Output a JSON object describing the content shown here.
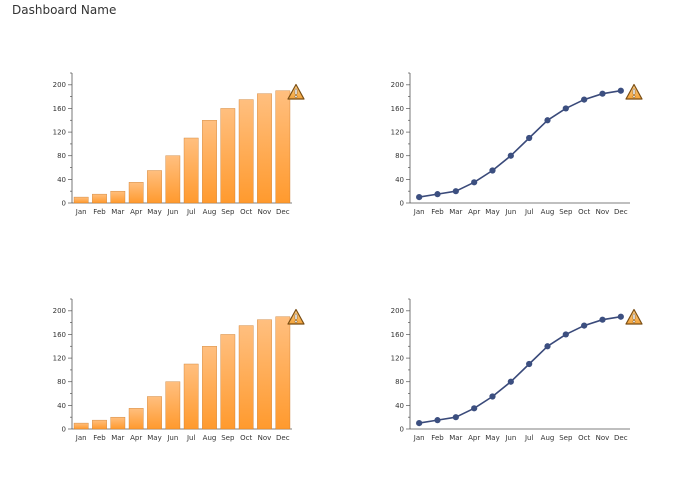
{
  "dashboard": {
    "title": "Dashboard Name"
  },
  "icons": {
    "warning": "warning-icon"
  },
  "colors": {
    "bar_top": "#ffbf7f",
    "bar_bottom": "#ff9a2e",
    "bar_stroke": "#c97a2b",
    "line": "#3a4a7a",
    "marker": "#3c4f80",
    "axis": "#555555",
    "warning_fill": "#f2a23a",
    "warning_stroke": "#7a4e14"
  },
  "chart_data": [
    {
      "type": "bar",
      "categories": [
        "Jan",
        "Feb",
        "Mar",
        "Apr",
        "May",
        "Jun",
        "Jul",
        "Aug",
        "Sep",
        "Oct",
        "Nov",
        "Dec"
      ],
      "values": [
        10,
        15,
        20,
        35,
        55,
        80,
        110,
        140,
        160,
        175,
        185,
        190
      ],
      "ylim": [
        0,
        220
      ],
      "yticks": [
        0,
        40,
        80,
        120,
        160,
        200
      ],
      "title": "",
      "xlabel": "",
      "ylabel": "",
      "grid": false
    },
    {
      "type": "line",
      "categories": [
        "Jan",
        "Feb",
        "Mar",
        "Apr",
        "May",
        "Jun",
        "Jul",
        "Aug",
        "Sep",
        "Oct",
        "Nov",
        "Dec"
      ],
      "values": [
        10,
        15,
        20,
        35,
        55,
        80,
        110,
        140,
        160,
        175,
        185,
        190
      ],
      "ylim": [
        0,
        220
      ],
      "yticks": [
        0,
        40,
        80,
        120,
        160,
        200
      ],
      "title": "",
      "xlabel": "",
      "ylabel": "",
      "grid": false
    },
    {
      "type": "bar",
      "categories": [
        "Jan",
        "Feb",
        "Mar",
        "Apr",
        "May",
        "Jun",
        "Jul",
        "Aug",
        "Sep",
        "Oct",
        "Nov",
        "Dec"
      ],
      "values": [
        10,
        15,
        20,
        35,
        55,
        80,
        110,
        140,
        160,
        175,
        185,
        190
      ],
      "ylim": [
        0,
        220
      ],
      "yticks": [
        0,
        40,
        80,
        120,
        160,
        200
      ],
      "title": "",
      "xlabel": "",
      "ylabel": "",
      "grid": false
    },
    {
      "type": "line",
      "categories": [
        "Jan",
        "Feb",
        "Mar",
        "Apr",
        "May",
        "Jun",
        "Jul",
        "Aug",
        "Sep",
        "Oct",
        "Nov",
        "Dec"
      ],
      "values": [
        10,
        15,
        20,
        35,
        55,
        80,
        110,
        140,
        160,
        175,
        185,
        190
      ],
      "ylim": [
        0,
        220
      ],
      "yticks": [
        0,
        40,
        80,
        120,
        160,
        200
      ],
      "title": "",
      "xlabel": "",
      "ylabel": "",
      "grid": false
    }
  ]
}
